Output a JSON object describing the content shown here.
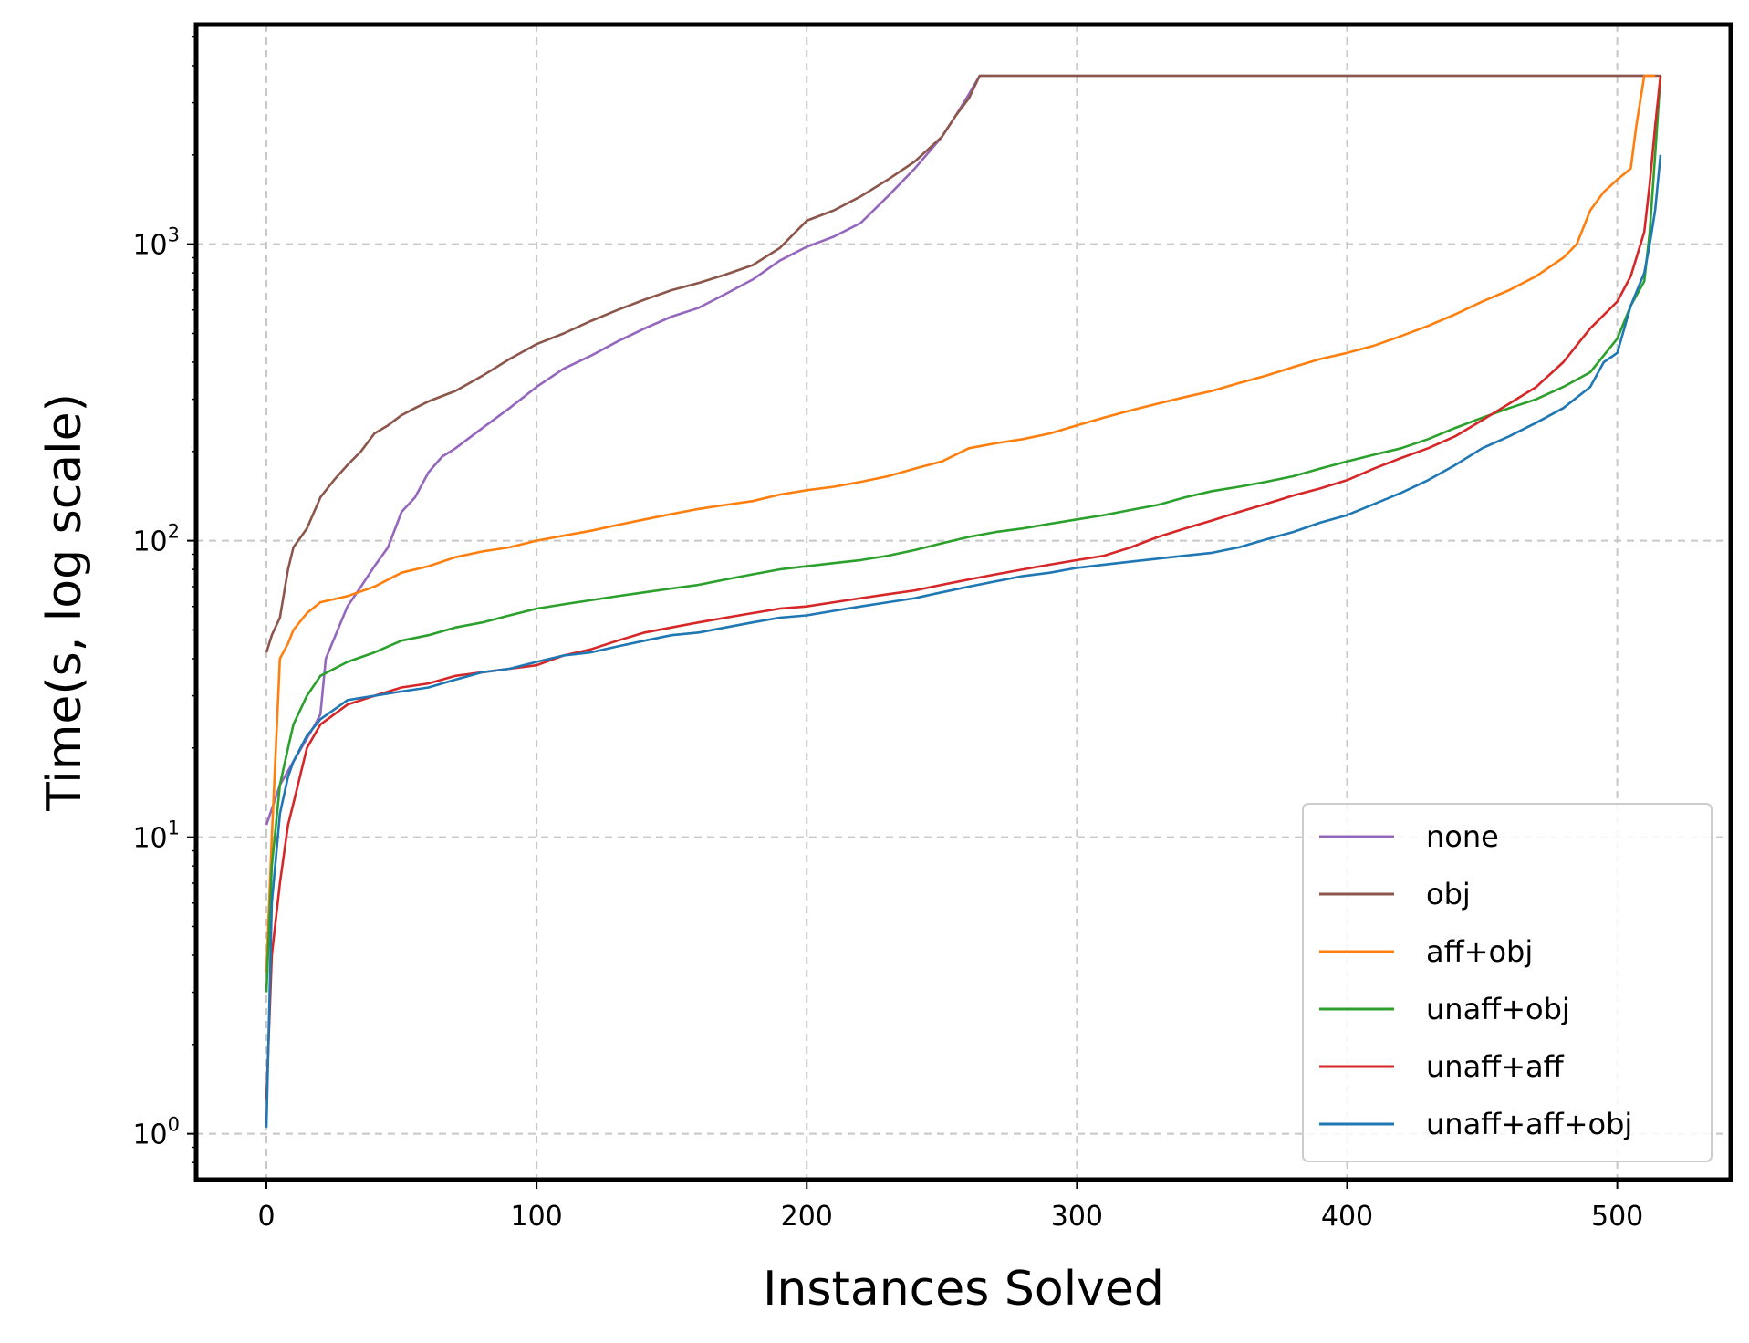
{
  "chart_data": {
    "type": "line",
    "title": "",
    "xlabel": "Instances Solved",
    "ylabel": "Time(s, log scale)",
    "yscale": "log",
    "xlim": [
      -26,
      542
    ],
    "ylim": [
      0.7,
      5500
    ],
    "grid": true,
    "legend_position": "lower-right",
    "x_ticks": [
      0,
      100,
      200,
      300,
      400,
      500
    ],
    "x_tick_labels": [
      "0",
      "100",
      "200",
      "300",
      "400",
      "500"
    ],
    "y_ticks": [
      1,
      10,
      100,
      1000
    ],
    "y_tick_labels": [
      {
        "base": "10",
        "exp": "0"
      },
      {
        "base": "10",
        "exp": "1"
      },
      {
        "base": "10",
        "exp": "2"
      },
      {
        "base": "10",
        "exp": "3"
      }
    ],
    "series": [
      {
        "name": "none",
        "color": "#9467bd",
        "points": [
          [
            0,
            11
          ],
          [
            5,
            15
          ],
          [
            10,
            18
          ],
          [
            18,
            24
          ],
          [
            20,
            26
          ],
          [
            22,
            40
          ],
          [
            30,
            60
          ],
          [
            35,
            70
          ],
          [
            40,
            82
          ],
          [
            45,
            95
          ],
          [
            50,
            125
          ],
          [
            55,
            140
          ],
          [
            60,
            170
          ],
          [
            65,
            192
          ],
          [
            70,
            205
          ],
          [
            80,
            240
          ],
          [
            90,
            280
          ],
          [
            100,
            330
          ],
          [
            110,
            380
          ],
          [
            120,
            420
          ],
          [
            130,
            470
          ],
          [
            140,
            520
          ],
          [
            150,
            570
          ],
          [
            160,
            610
          ],
          [
            170,
            680
          ],
          [
            180,
            760
          ],
          [
            190,
            880
          ],
          [
            200,
            980
          ],
          [
            210,
            1060
          ],
          [
            220,
            1180
          ],
          [
            230,
            1450
          ],
          [
            240,
            1800
          ],
          [
            250,
            2300
          ],
          [
            255,
            2700
          ],
          [
            260,
            3200
          ],
          [
            264,
            3700
          ],
          [
            300,
            3700
          ],
          [
            400,
            3700
          ],
          [
            510,
            3700
          ]
        ]
      },
      {
        "name": "obj",
        "color": "#8c564b",
        "points": [
          [
            0,
            42
          ],
          [
            2,
            48
          ],
          [
            5,
            55
          ],
          [
            8,
            80
          ],
          [
            10,
            95
          ],
          [
            15,
            110
          ],
          [
            20,
            140
          ],
          [
            25,
            160
          ],
          [
            30,
            180
          ],
          [
            35,
            200
          ],
          [
            40,
            230
          ],
          [
            45,
            245
          ],
          [
            50,
            265
          ],
          [
            55,
            280
          ],
          [
            60,
            295
          ],
          [
            70,
            320
          ],
          [
            80,
            360
          ],
          [
            90,
            410
          ],
          [
            100,
            460
          ],
          [
            110,
            500
          ],
          [
            120,
            550
          ],
          [
            130,
            600
          ],
          [
            140,
            650
          ],
          [
            150,
            700
          ],
          [
            160,
            740
          ],
          [
            170,
            790
          ],
          [
            180,
            850
          ],
          [
            190,
            970
          ],
          [
            200,
            1200
          ],
          [
            210,
            1300
          ],
          [
            220,
            1450
          ],
          [
            230,
            1650
          ],
          [
            240,
            1900
          ],
          [
            250,
            2300
          ],
          [
            255,
            2700
          ],
          [
            260,
            3100
          ],
          [
            264,
            3700
          ],
          [
            300,
            3700
          ],
          [
            400,
            3700
          ],
          [
            516,
            3700
          ]
        ]
      },
      {
        "name": "aff+obj",
        "color": "#ff7f0e",
        "points": [
          [
            0,
            3.5
          ],
          [
            2,
            10
          ],
          [
            5,
            40
          ],
          [
            8,
            45
          ],
          [
            10,
            50
          ],
          [
            15,
            57
          ],
          [
            20,
            62
          ],
          [
            30,
            65
          ],
          [
            40,
            70
          ],
          [
            50,
            78
          ],
          [
            60,
            82
          ],
          [
            70,
            88
          ],
          [
            80,
            92
          ],
          [
            90,
            95
          ],
          [
            100,
            100
          ],
          [
            110,
            104
          ],
          [
            120,
            108
          ],
          [
            130,
            113
          ],
          [
            140,
            118
          ],
          [
            150,
            123
          ],
          [
            160,
            128
          ],
          [
            170,
            132
          ],
          [
            180,
            136
          ],
          [
            190,
            143
          ],
          [
            200,
            148
          ],
          [
            210,
            152
          ],
          [
            220,
            158
          ],
          [
            230,
            165
          ],
          [
            240,
            175
          ],
          [
            250,
            185
          ],
          [
            260,
            205
          ],
          [
            270,
            213
          ],
          [
            280,
            220
          ],
          [
            290,
            230
          ],
          [
            300,
            245
          ],
          [
            310,
            260
          ],
          [
            320,
            275
          ],
          [
            330,
            290
          ],
          [
            340,
            305
          ],
          [
            350,
            320
          ],
          [
            360,
            340
          ],
          [
            370,
            360
          ],
          [
            380,
            385
          ],
          [
            390,
            410
          ],
          [
            400,
            430
          ],
          [
            410,
            455
          ],
          [
            420,
            490
          ],
          [
            430,
            530
          ],
          [
            440,
            580
          ],
          [
            450,
            640
          ],
          [
            460,
            700
          ],
          [
            470,
            780
          ],
          [
            480,
            900
          ],
          [
            485,
            1000
          ],
          [
            490,
            1300
          ],
          [
            495,
            1500
          ],
          [
            500,
            1650
          ],
          [
            505,
            1800
          ],
          [
            507,
            2500
          ],
          [
            510,
            3700
          ],
          [
            514,
            3700
          ]
        ]
      },
      {
        "name": "unaff+obj",
        "color": "#2ca02c",
        "points": [
          [
            0,
            3.0
          ],
          [
            2,
            8
          ],
          [
            5,
            15
          ],
          [
            8,
            20
          ],
          [
            10,
            24
          ],
          [
            15,
            30
          ],
          [
            20,
            35
          ],
          [
            30,
            39
          ],
          [
            40,
            42
          ],
          [
            50,
            46
          ],
          [
            60,
            48
          ],
          [
            70,
            51
          ],
          [
            80,
            53
          ],
          [
            90,
            56
          ],
          [
            100,
            59
          ],
          [
            110,
            61
          ],
          [
            120,
            63
          ],
          [
            130,
            65
          ],
          [
            140,
            67
          ],
          [
            150,
            69
          ],
          [
            160,
            71
          ],
          [
            170,
            74
          ],
          [
            180,
            77
          ],
          [
            190,
            80
          ],
          [
            200,
            82
          ],
          [
            210,
            84
          ],
          [
            220,
            86
          ],
          [
            230,
            89
          ],
          [
            240,
            93
          ],
          [
            250,
            98
          ],
          [
            260,
            103
          ],
          [
            270,
            107
          ],
          [
            280,
            110
          ],
          [
            290,
            114
          ],
          [
            300,
            118
          ],
          [
            310,
            122
          ],
          [
            320,
            127
          ],
          [
            330,
            132
          ],
          [
            340,
            140
          ],
          [
            350,
            147
          ],
          [
            360,
            152
          ],
          [
            370,
            158
          ],
          [
            380,
            165
          ],
          [
            390,
            175
          ],
          [
            400,
            185
          ],
          [
            410,
            195
          ],
          [
            420,
            205
          ],
          [
            430,
            220
          ],
          [
            440,
            240
          ],
          [
            450,
            260
          ],
          [
            460,
            280
          ],
          [
            470,
            300
          ],
          [
            480,
            330
          ],
          [
            490,
            370
          ],
          [
            500,
            480
          ],
          [
            505,
            620
          ],
          [
            510,
            750
          ],
          [
            512,
            1100
          ],
          [
            514,
            2000
          ],
          [
            516,
            3700
          ]
        ]
      },
      {
        "name": "unaff+aff",
        "color": "#d62728",
        "points": [
          [
            0,
            1.3
          ],
          [
            2,
            4
          ],
          [
            5,
            7
          ],
          [
            8,
            11
          ],
          [
            10,
            13
          ],
          [
            15,
            20
          ],
          [
            20,
            24
          ],
          [
            30,
            28
          ],
          [
            40,
            30
          ],
          [
            50,
            32
          ],
          [
            60,
            33
          ],
          [
            70,
            35
          ],
          [
            80,
            36
          ],
          [
            90,
            37
          ],
          [
            100,
            38
          ],
          [
            110,
            41
          ],
          [
            120,
            43
          ],
          [
            130,
            46
          ],
          [
            140,
            49
          ],
          [
            150,
            51
          ],
          [
            160,
            53
          ],
          [
            170,
            55
          ],
          [
            180,
            57
          ],
          [
            190,
            59
          ],
          [
            200,
            60
          ],
          [
            210,
            62
          ],
          [
            220,
            64
          ],
          [
            230,
            66
          ],
          [
            240,
            68
          ],
          [
            250,
            71
          ],
          [
            260,
            74
          ],
          [
            270,
            77
          ],
          [
            280,
            80
          ],
          [
            290,
            83
          ],
          [
            300,
            86
          ],
          [
            310,
            89
          ],
          [
            320,
            95
          ],
          [
            330,
            103
          ],
          [
            340,
            110
          ],
          [
            350,
            117
          ],
          [
            360,
            125
          ],
          [
            370,
            133
          ],
          [
            380,
            142
          ],
          [
            390,
            150
          ],
          [
            400,
            160
          ],
          [
            410,
            175
          ],
          [
            420,
            190
          ],
          [
            430,
            205
          ],
          [
            440,
            225
          ],
          [
            450,
            255
          ],
          [
            460,
            290
          ],
          [
            470,
            330
          ],
          [
            480,
            400
          ],
          [
            490,
            520
          ],
          [
            500,
            640
          ],
          [
            505,
            780
          ],
          [
            510,
            1100
          ],
          [
            512,
            1600
          ],
          [
            514,
            2500
          ],
          [
            516,
            3700
          ]
        ]
      },
      {
        "name": "unaff+aff+obj",
        "color": "#1f77b4",
        "points": [
          [
            0,
            1.05
          ],
          [
            2,
            6
          ],
          [
            5,
            12
          ],
          [
            8,
            16
          ],
          [
            10,
            18
          ],
          [
            15,
            22
          ],
          [
            20,
            25
          ],
          [
            30,
            29
          ],
          [
            40,
            30
          ],
          [
            50,
            31
          ],
          [
            60,
            32
          ],
          [
            70,
            34
          ],
          [
            80,
            36
          ],
          [
            90,
            37
          ],
          [
            100,
            39
          ],
          [
            110,
            41
          ],
          [
            120,
            42
          ],
          [
            130,
            44
          ],
          [
            140,
            46
          ],
          [
            150,
            48
          ],
          [
            160,
            49
          ],
          [
            170,
            51
          ],
          [
            180,
            53
          ],
          [
            190,
            55
          ],
          [
            200,
            56
          ],
          [
            210,
            58
          ],
          [
            220,
            60
          ],
          [
            230,
            62
          ],
          [
            240,
            64
          ],
          [
            250,
            67
          ],
          [
            260,
            70
          ],
          [
            270,
            73
          ],
          [
            280,
            76
          ],
          [
            290,
            78
          ],
          [
            300,
            81
          ],
          [
            310,
            83
          ],
          [
            320,
            85
          ],
          [
            330,
            87
          ],
          [
            340,
            89
          ],
          [
            350,
            91
          ],
          [
            360,
            95
          ],
          [
            370,
            101
          ],
          [
            380,
            107
          ],
          [
            390,
            115
          ],
          [
            400,
            122
          ],
          [
            410,
            133
          ],
          [
            420,
            145
          ],
          [
            430,
            160
          ],
          [
            440,
            180
          ],
          [
            450,
            205
          ],
          [
            460,
            225
          ],
          [
            470,
            250
          ],
          [
            480,
            280
          ],
          [
            490,
            330
          ],
          [
            495,
            400
          ],
          [
            500,
            430
          ],
          [
            505,
            620
          ],
          [
            510,
            800
          ],
          [
            512,
            1000
          ],
          [
            514,
            1300
          ],
          [
            516,
            2000
          ]
        ]
      }
    ]
  }
}
